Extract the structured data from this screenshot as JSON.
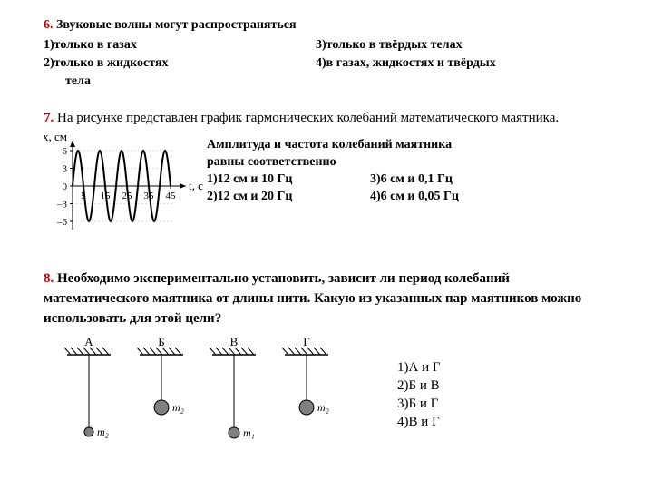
{
  "q6": {
    "num": "6.",
    "text": "Звуковые волны могут распространяться",
    "opts": {
      "o1": "1)только в газах",
      "o2": "2)только в жидкостях",
      "o2sub": "тела",
      "o3": "3)только в твёрдых телах",
      "o4": "4)в газах, жидкостях и твёрдых"
    },
    "num_color": "#c00000"
  },
  "q7": {
    "num": "7.",
    "prompt": "На рисунке представлен  график гармонических колебаний математического маятника.",
    "line1": "Амплитуда и частота колебаний маятника",
    "line2": "равны соответственно",
    "opts": {
      "o1": "1)12 см и 10 Гц",
      "o2": "2)12 см и 20 Гц",
      "o3": "3)6 см и 0,1 Гц",
      "o4": "4)6 см и 0,05 Гц"
    },
    "chart": {
      "ylabel": "x, см",
      "xlabel": "t, с",
      "yticks": [
        6,
        3,
        0,
        -3,
        -6
      ],
      "xticks": [
        5,
        15,
        25,
        35,
        45
      ],
      "amplitude_cm": 6,
      "period_s": 10,
      "line_color": "#000000",
      "axis_color": "#000000"
    }
  },
  "q8": {
    "num": "8.",
    "prompt": " Необходимо экспериментально установить, зависит ли период колебаний математического маятника от длины нити. Какую из указанных пар маятников можно использовать для этой цели?",
    "opts": {
      "o1": "1)А и Г",
      "o2": "2)Б и В",
      "o3": "3)Б и Г",
      "o4": "4)В и Г"
    },
    "pendulums": {
      "labels": [
        "А",
        "Б",
        "В",
        "Г"
      ],
      "lengths": [
        80,
        50,
        80,
        50
      ],
      "radii": [
        5,
        8,
        6,
        8
      ],
      "mass_labels": [
        "m₂",
        "m₂",
        "m₁",
        "m₂"
      ],
      "string_color": "#000000",
      "bob_fill": "#808080",
      "bob_stroke": "#000000",
      "hatch_color": "#000000"
    }
  }
}
